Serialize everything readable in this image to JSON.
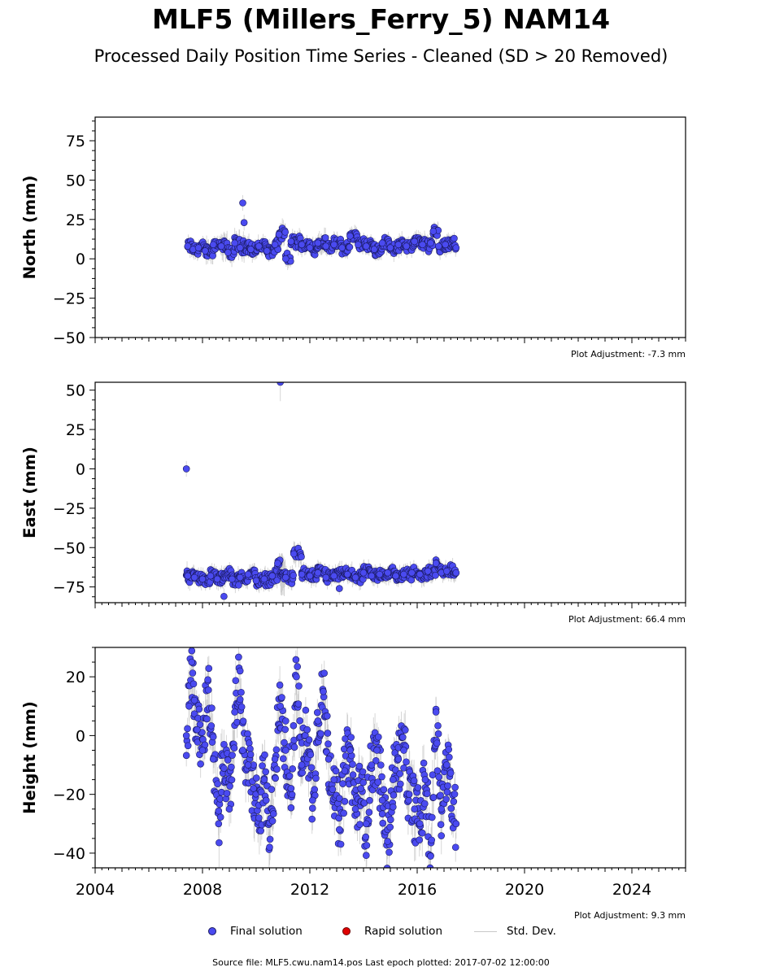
{
  "title": "MLF5 (Millers_Ferry_5) NAM14",
  "subtitle": "Processed Daily Position Time Series - Cleaned (SD > 20 Removed)",
  "legend": {
    "final": "Final solution",
    "rapid": "Rapid solution",
    "std": "Std. Dev."
  },
  "source": "Source file: MLF5.cwu.nam14.pos  Last epoch plotted: 2017-07-02 12:00:00",
  "colors": {
    "final_fill": "#4a4af0",
    "final_edge": "#1a1a60",
    "rapid": "#e00000",
    "stddev": "#bdbdbd"
  },
  "chart_data": [
    {
      "type": "scatter",
      "ylabel": "North (mm)",
      "xlim": [
        2004,
        2026
      ],
      "ylim": [
        -50,
        90
      ],
      "yticks": [
        -50,
        -25,
        0,
        25,
        50,
        75
      ],
      "adjustment": "Plot Adjustment: -7.3 mm",
      "series": [
        {
          "name": "Final solution",
          "x": [
            2007.45,
            2007.65,
            2007.85,
            2008.1,
            2008.4,
            2008.7,
            2008.95,
            2009.2,
            2009.4,
            2009.5,
            2009.55,
            2009.8,
            2010.1,
            2010.4,
            2010.7,
            2010.85,
            2011.1,
            2011.3,
            2011.7,
            2012.0,
            2012.3,
            2012.6,
            2012.9,
            2013.2,
            2013.5,
            2013.8,
            2014.1,
            2014.4,
            2014.7,
            2015.0,
            2015.3,
            2015.6,
            2015.9,
            2016.2,
            2016.5,
            2016.6,
            2016.8,
            2017.05,
            2017.45
          ],
          "y": [
            8,
            6,
            7,
            5,
            9,
            8,
            4,
            10,
            7,
            35.5,
            23,
            6,
            8,
            5,
            9,
            15.5,
            0,
            11,
            9,
            7,
            10,
            8,
            9,
            7,
            14.5,
            9,
            8,
            6,
            10,
            7,
            9,
            8,
            11,
            9,
            10,
            17.5,
            8,
            9,
            7
          ],
          "err": [
            4,
            4,
            4,
            5,
            4,
            6,
            5,
            5,
            4,
            5,
            5,
            4,
            4,
            4,
            4,
            5,
            4,
            4,
            4,
            4,
            5,
            4,
            4,
            4,
            4,
            4,
            4,
            4,
            4,
            4,
            4,
            4,
            4,
            4,
            4,
            4,
            4,
            4,
            4
          ]
        }
      ]
    },
    {
      "type": "scatter",
      "ylabel": "East (mm)",
      "xlim": [
        2004,
        2026
      ],
      "ylim": [
        -85,
        55
      ],
      "yticks": [
        -75,
        -50,
        -25,
        0,
        25,
        50
      ],
      "adjustment": "Plot Adjustment: 66.4 mm",
      "series": [
        {
          "name": "Final solution",
          "x": [
            2007.4,
            2007.45,
            2007.7,
            2008.0,
            2008.3,
            2008.55,
            2008.8,
            2009.1,
            2009.4,
            2009.7,
            2010.0,
            2010.3,
            2010.6,
            2010.8,
            2010.9,
            2011.1,
            2011.4,
            2011.7,
            2012.0,
            2012.3,
            2012.6,
            2012.9,
            2013.1,
            2013.4,
            2013.7,
            2014.0,
            2014.3,
            2014.6,
            2014.9,
            2015.2,
            2015.5,
            2015.8,
            2016.1,
            2016.4,
            2016.7,
            2016.9,
            2017.1,
            2017.45
          ],
          "y": [
            0,
            -68,
            -69,
            -70,
            -68,
            -70,
            -81,
            -70,
            -69,
            -67,
            -71,
            -70,
            -68,
            -60,
            55,
            -69,
            -54,
            -67,
            -68,
            -66,
            -69,
            -68,
            -76,
            -67,
            -69,
            -66,
            -68,
            -67,
            -66,
            -68,
            -67,
            -66,
            -67,
            -65,
            -60,
            -66,
            -65,
            -66
          ],
          "err": [
            5,
            4,
            4,
            4,
            4,
            4,
            5,
            4,
            4,
            4,
            4,
            4,
            4,
            4,
            12,
            4,
            5,
            4,
            4,
            4,
            4,
            4,
            4,
            4,
            4,
            4,
            4,
            4,
            4,
            4,
            4,
            4,
            4,
            4,
            4,
            4,
            4,
            4
          ]
        }
      ]
    },
    {
      "type": "scatter",
      "ylabel": "Height (mm)",
      "xlim": [
        2004,
        2026
      ],
      "ylim": [
        -45,
        30
      ],
      "yticks": [
        -40,
        -20,
        0,
        20
      ],
      "xticks": [
        2004,
        2008,
        2012,
        2016,
        2020,
        2024
      ],
      "adjustment": "Plot Adjustment: 9.3 mm",
      "series": [
        {
          "name": "Final solution",
          "x": [
            2007.4,
            2007.5,
            2007.6,
            2007.7,
            2007.8,
            2008.0,
            2008.2,
            2008.4,
            2008.6,
            2008.8,
            2009.0,
            2009.2,
            2009.4,
            2009.5,
            2009.7,
            2009.9,
            2010.1,
            2010.3,
            2010.5,
            2010.7,
            2010.9,
            2011.1,
            2011.3,
            2011.5,
            2011.7,
            2011.9,
            2012.1,
            2012.3,
            2012.5,
            2012.7,
            2012.9,
            2013.1,
            2013.3,
            2013.5,
            2013.7,
            2013.9,
            2014.1,
            2014.3,
            2014.5,
            2014.7,
            2014.9,
            2015.1,
            2015.3,
            2015.5,
            2015.7,
            2015.9,
            2016.1,
            2016.3,
            2016.5,
            2016.7,
            2016.9,
            2017.1,
            2017.45
          ],
          "y": [
            0,
            10,
            25,
            12,
            2,
            -5,
            19,
            -8,
            -30,
            -3,
            -25,
            8,
            22,
            -5,
            -10,
            -18,
            -28,
            -15,
            -38,
            -8,
            10,
            -5,
            -18,
            20,
            -10,
            2,
            -22,
            5,
            15,
            -8,
            -15,
            -32,
            -12,
            -5,
            -25,
            -18,
            -30,
            -10,
            -5,
            -22,
            -36,
            -15,
            -8,
            -5,
            -20,
            -25,
            -30,
            -15,
            -41,
            8,
            -25,
            -10,
            -30
          ],
          "err": [
            4,
            5,
            6,
            5,
            4,
            5,
            6,
            5,
            6,
            5,
            6,
            5,
            6,
            5,
            5,
            6,
            6,
            5,
            6,
            5,
            6,
            5,
            5,
            6,
            5,
            5,
            6,
            5,
            6,
            5,
            5,
            6,
            5,
            5,
            6,
            5,
            6,
            5,
            5,
            6,
            6,
            5,
            5,
            5,
            6,
            6,
            6,
            5,
            6,
            5,
            6,
            5,
            5
          ]
        }
      ]
    }
  ]
}
